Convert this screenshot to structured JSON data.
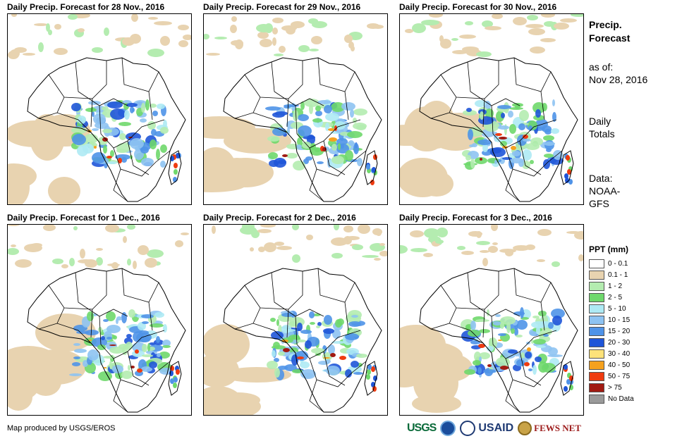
{
  "panels": [
    {
      "title": "Daily Precip. Forecast for 28 Nov., 2016"
    },
    {
      "title": "Daily Precip. Forecast for 29 Nov., 2016"
    },
    {
      "title": "Daily Precip. Forecast for 30 Nov., 2016"
    },
    {
      "title": "Daily Precip. Forecast for 1 Dec., 2016"
    },
    {
      "title": "Daily Precip. Forecast for 2 Dec., 2016"
    },
    {
      "title": "Daily Precip. Forecast for 3 Dec., 2016"
    }
  ],
  "sidebar": {
    "title_line1": "Precip.",
    "title_line2": "Forecast",
    "asof_label": "as of:",
    "asof_date": "Nov 28, 2016",
    "daily_line1": "Daily",
    "daily_line2": "Totals",
    "data_label": "Data:",
    "data_line1": "NOAA-",
    "data_line2": "GFS"
  },
  "legend": {
    "title": "PPT (mm)",
    "items": [
      {
        "label": "0 - 0.1",
        "color": "#ffffff"
      },
      {
        "label": "0.1 - 1",
        "color": "#e8d3b0"
      },
      {
        "label": "1 - 2",
        "color": "#b4ecb0"
      },
      {
        "label": "2 - 5",
        "color": "#6fd86c"
      },
      {
        "label": "5 - 10",
        "color": "#aeeaf4"
      },
      {
        "label": "10 - 15",
        "color": "#8ec3f2"
      },
      {
        "label": "15 - 20",
        "color": "#4f93e8"
      },
      {
        "label": "20 - 30",
        "color": "#1f55d8"
      },
      {
        "label": "30 - 40",
        "color": "#fde27a"
      },
      {
        "label": "40 - 50",
        "color": "#f5a11e"
      },
      {
        "label": "50 - 75",
        "color": "#ef3b10"
      },
      {
        "label": "> 75",
        "color": "#a11a12"
      },
      {
        "label": "No Data",
        "color": "#9a9a9a"
      }
    ]
  },
  "footer": {
    "credit": "Map produced by USGS/EROS"
  },
  "logos": {
    "usgs": "USGS",
    "usaid": "USAID",
    "fews": "FEWS NET"
  }
}
